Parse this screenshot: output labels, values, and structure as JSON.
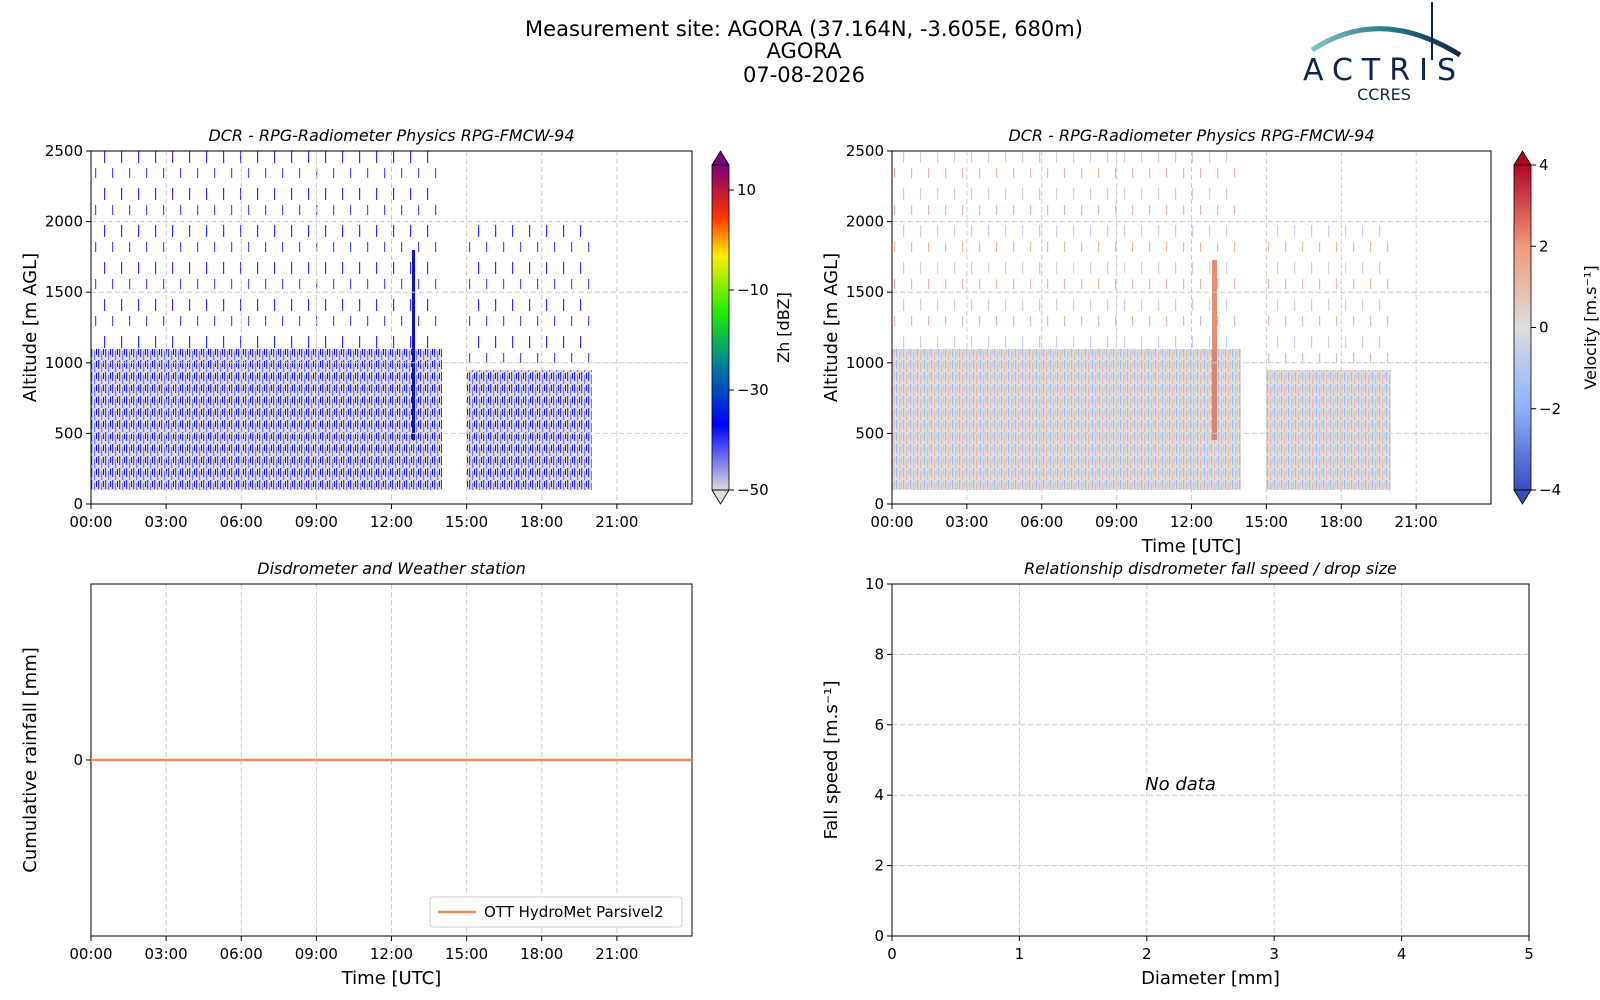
{
  "header": {
    "title": [
      "Measurement site: AGORA (37.164N, -3.605E, 680m)",
      "AGORA",
      "07-08-2026"
    ],
    "logo": "ACTRIS",
    "logo_subtitle": "CCRES"
  },
  "chart_data": [
    {
      "type": "heatmap",
      "title": "DCR - RPG-Radiometer Physics RPG-FMCW-94",
      "ylabel": "Altitude [m AGL]",
      "xlim": [
        0,
        24
      ],
      "xticks": [
        {
          "value": 0,
          "label": "00:00"
        },
        {
          "value": 3,
          "label": "03:00"
        },
        {
          "value": 6,
          "label": "06:00"
        },
        {
          "value": 9,
          "label": "09:00"
        },
        {
          "value": 12,
          "label": "12:00"
        },
        {
          "value": 15,
          "label": "15:00"
        },
        {
          "value": 18,
          "label": "18:00"
        },
        {
          "value": 21,
          "label": "21:00"
        }
      ],
      "ylim": [
        0,
        2500
      ],
      "yticks": [
        0,
        500,
        1000,
        1500,
        2000,
        2500
      ],
      "grid": true,
      "colorbar": {
        "label": "Zh [dBZ]",
        "clim": [
          -50,
          15
        ],
        "ticks": [
          {
            "value": -50,
            "label": "−50"
          },
          {
            "value": -30,
            "label": "−30"
          },
          {
            "value": -10,
            "label": "−10"
          },
          10
        ],
        "colormap": "zh"
      }
    },
    {
      "type": "heatmap",
      "title": "DCR - RPG-Radiometer Physics RPG-FMCW-94",
      "ylabel": "Altitude [m AGL]",
      "xlabel": "Time [UTC]",
      "xlim": [
        0,
        24
      ],
      "xticks": [
        {
          "value": 0,
          "label": "00:00"
        },
        {
          "value": 3,
          "label": "03:00"
        },
        {
          "value": 6,
          "label": "06:00"
        },
        {
          "value": 9,
          "label": "09:00"
        },
        {
          "value": 12,
          "label": "12:00"
        },
        {
          "value": 15,
          "label": "15:00"
        },
        {
          "value": 18,
          "label": "18:00"
        },
        {
          "value": 21,
          "label": "21:00"
        }
      ],
      "ylim": [
        0,
        2500
      ],
      "yticks": [
        0,
        500,
        1000,
        1500,
        2000,
        2500
      ],
      "grid": true,
      "colorbar": {
        "label": "Velocity [m.s⁻¹]",
        "clim": [
          -4,
          4
        ],
        "ticks": [
          {
            "value": -4,
            "label": "−4"
          },
          {
            "value": -2,
            "label": "−2"
          },
          0,
          2,
          4
        ],
        "colormap": "vel"
      }
    },
    {
      "type": "line",
      "title": "Disdrometer and Weather station",
      "ylabel": "Cumulative rainfall [mm]",
      "xlabel": "Time [UTC]",
      "xlim": [
        0,
        24
      ],
      "xticks": [
        {
          "value": 0,
          "label": "00:00"
        },
        {
          "value": 3,
          "label": "03:00"
        },
        {
          "value": 6,
          "label": "06:00"
        },
        {
          "value": 9,
          "label": "09:00"
        },
        {
          "value": 12,
          "label": "12:00"
        },
        {
          "value": 15,
          "label": "15:00"
        },
        {
          "value": 18,
          "label": "18:00"
        },
        {
          "value": 21,
          "label": "21:00"
        }
      ],
      "ylim": [
        -1,
        1
      ],
      "yticks": [
        0
      ],
      "grid": true,
      "legend": "lower right",
      "series": [
        {
          "name": "OTT HydroMet Parsivel2",
          "color": "#f28c5e",
          "x": [
            0,
            24
          ],
          "values": [
            0,
            0
          ]
        }
      ]
    },
    {
      "type": "scatter",
      "title": "Relationship disdrometer fall speed / drop size",
      "ylabel": "Fall speed [m.s⁻¹]",
      "xlabel": "Diameter [mm]",
      "xlim": [
        0,
        5
      ],
      "xticks": [
        0,
        1,
        2,
        3,
        4,
        5
      ],
      "ylim": [
        0,
        10
      ],
      "yticks": [
        0,
        2,
        4,
        6,
        8,
        10
      ],
      "grid": true,
      "annotation": "No data",
      "x": [],
      "values": []
    }
  ]
}
